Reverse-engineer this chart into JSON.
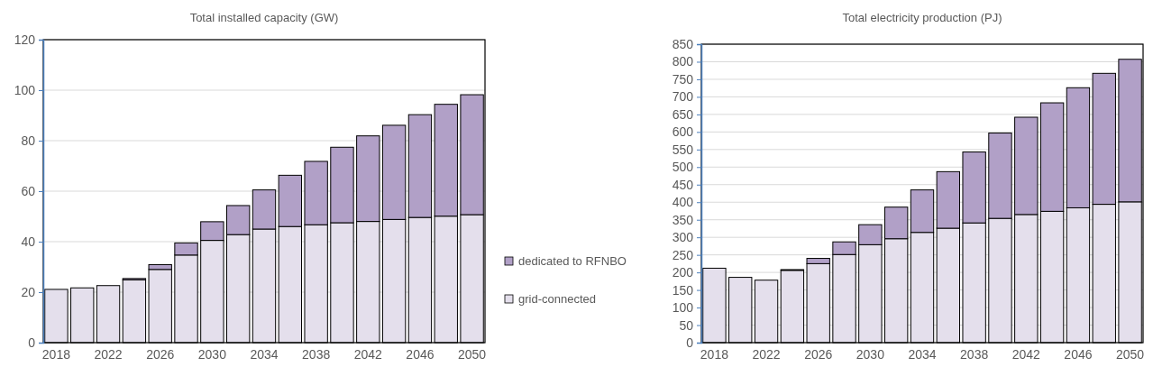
{
  "chart_data": [
    {
      "type": "bar",
      "title": "Total installed capacity (GW)",
      "stacked": true,
      "categories": [
        "2018",
        null,
        "2022",
        null,
        "2026",
        null,
        "2030",
        null,
        "2034",
        null,
        "2038",
        null,
        "2042",
        null,
        "2046",
        null,
        "2050"
      ],
      "ylim": [
        0,
        120
      ],
      "yticks": [
        0,
        20,
        40,
        60,
        80,
        100,
        120
      ],
      "grid": "y",
      "legend": "right",
      "series": [
        {
          "name": "grid-connected",
          "color": "#e4dfec",
          "values": [
            21.1,
            21.7,
            22.6,
            24.9,
            29.0,
            34.7,
            40.5,
            42.8,
            45.0,
            46.0,
            46.7,
            47.5,
            48.0,
            48.8,
            49.6,
            50.1,
            50.7
          ]
        },
        {
          "name": "dedicated to RFNBO",
          "color": "#b1a0c7",
          "values": [
            0,
            0,
            0,
            0.5,
            1.9,
            4.8,
            7.4,
            11.5,
            15.5,
            20.3,
            25.1,
            29.9,
            33.9,
            37.3,
            40.7,
            44.3,
            47.5
          ]
        }
      ]
    },
    {
      "type": "bar",
      "title": "Total electricity production (PJ)",
      "stacked": true,
      "categories": [
        "2018",
        null,
        "2022",
        null,
        "2026",
        null,
        "2030",
        null,
        "2034",
        null,
        "2038",
        null,
        "2042",
        null,
        "2046",
        null,
        "2050"
      ],
      "ylim": [
        0,
        850
      ],
      "yticks": [
        0,
        50,
        100,
        150,
        200,
        250,
        300,
        350,
        400,
        450,
        500,
        550,
        600,
        650,
        700,
        750,
        800,
        850
      ],
      "grid": "y",
      "series": [
        {
          "color": "#e4dfec",
          "values": [
            212,
            186,
            178,
            206,
            225,
            251,
            279,
            296,
            314,
            326,
            341,
            354,
            365,
            374,
            384,
            394,
            401
          ]
        },
        {
          "color": "#b1a0c7",
          "values": [
            0,
            0,
            0,
            2,
            15,
            36,
            57,
            90,
            121,
            161,
            202,
            243,
            277,
            309,
            342,
            373,
            406
          ]
        }
      ]
    }
  ]
}
